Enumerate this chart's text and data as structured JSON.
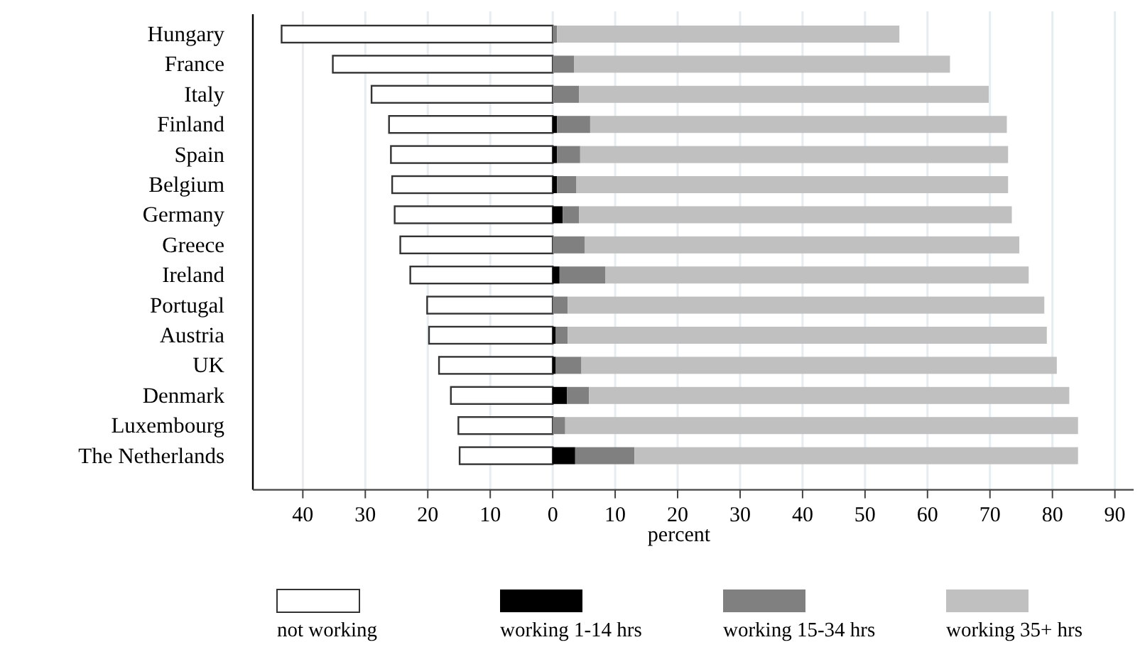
{
  "chart_data": {
    "type": "bar",
    "orientation": "horizontal",
    "stacked": true,
    "xlabel": "percent",
    "categories": [
      "Hungary",
      "France",
      "Italy",
      "Finland",
      "Spain",
      "Belgium",
      "Germany",
      "Greece",
      "Ireland",
      "Portugal",
      "Austria",
      "UK",
      "Denmark",
      "Luxembourg",
      "The Netherlands"
    ],
    "series": [
      {
        "name": "not working",
        "color": "#ffffff",
        "values": [
          -43.4,
          -35.2,
          -29.0,
          -26.2,
          -25.9,
          -25.7,
          -25.3,
          -24.4,
          -22.8,
          -20.1,
          -19.8,
          -18.2,
          -16.3,
          -15.1,
          -14.9
        ]
      },
      {
        "name": "working 1-14 hrs",
        "color": "#000000",
        "values": [
          0,
          0,
          0,
          0.7,
          0.7,
          0.7,
          1.6,
          0,
          1.1,
          0,
          0.5,
          0.5,
          2.3,
          0,
          3.6
        ]
      },
      {
        "name": "working 15-34 hrs",
        "color": "#808080",
        "values": [
          0.7,
          3.4,
          4.2,
          5.3,
          3.7,
          3.1,
          2.6,
          5.1,
          7.3,
          2.4,
          1.9,
          4.1,
          3.5,
          2.0,
          9.5
        ]
      },
      {
        "name": "working 35+ hrs",
        "color": "#c0c0c0",
        "values": [
          54.8,
          60.2,
          65.6,
          66.7,
          68.5,
          69.1,
          69.3,
          69.6,
          67.8,
          76.3,
          76.7,
          76.1,
          76.9,
          82.1,
          71.0
        ]
      }
    ],
    "xlim": [
      -48,
      93
    ],
    "xticks": [
      {
        "value": -40,
        "label": "40"
      },
      {
        "value": -30,
        "label": "30"
      },
      {
        "value": -20,
        "label": "20"
      },
      {
        "value": -10,
        "label": "10"
      },
      0,
      10,
      20,
      30,
      40,
      50,
      60,
      70,
      80,
      90
    ],
    "grid": "x",
    "legend": "bottom"
  }
}
